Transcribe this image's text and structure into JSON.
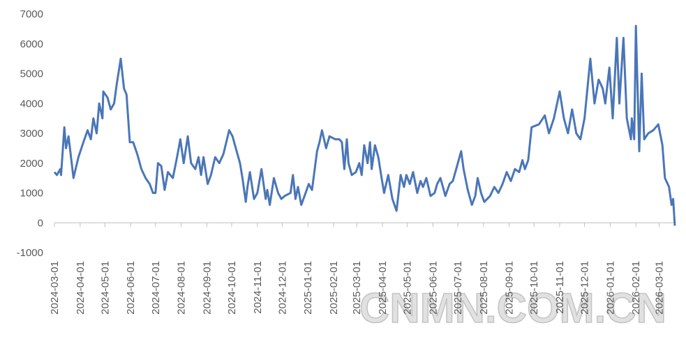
{
  "chart_data": {
    "type": "line",
    "color": "#4a76b8",
    "watermark": "CNMN.COM.CN",
    "ylim": [
      -1000,
      7000
    ],
    "yticks": [
      -1000,
      0,
      1000,
      2000,
      3000,
      4000,
      5000,
      6000,
      7000
    ],
    "xlim": [
      "2024-03-01",
      "2026-03-20"
    ],
    "xticks": [
      "2024-03-01",
      "2024-04-01",
      "2024-05-01",
      "2024-06-01",
      "2024-07-01",
      "2024-08-01",
      "2024-09-01",
      "2024-10-01",
      "2024-11-01",
      "2024-12-01",
      "2025-01-01",
      "2025-02-01",
      "2025-03-01",
      "2025-04-01",
      "2025-05-01",
      "2025-06-01",
      "2025-07-01",
      "2025-08-01",
      "2025-09-01",
      "2025-10-01",
      "2025-11-01",
      "2025-12-01",
      "2026-01-01",
      "2026-02-01",
      "2026-03-01"
    ],
    "x": [
      "2024-03-01",
      "2024-03-04",
      "2024-03-08",
      "2024-03-09",
      "2024-03-13",
      "2024-03-15",
      "2024-03-18",
      "2024-03-24",
      "2024-03-30",
      "2024-04-05",
      "2024-04-10",
      "2024-04-14",
      "2024-04-17",
      "2024-04-21",
      "2024-04-24",
      "2024-04-28",
      "2024-04-29",
      "2024-05-04",
      "2024-05-08",
      "2024-05-12",
      "2024-05-15",
      "2024-05-20",
      "2024-05-24",
      "2024-05-27",
      "2024-05-31",
      "2024-06-04",
      "2024-06-09",
      "2024-06-14",
      "2024-06-19",
      "2024-06-24",
      "2024-06-28",
      "2024-07-01",
      "2024-07-04",
      "2024-07-08",
      "2024-07-12",
      "2024-07-16",
      "2024-07-22",
      "2024-07-27",
      "2024-07-31",
      "2024-08-04",
      "2024-08-09",
      "2024-08-13",
      "2024-08-18",
      "2024-08-22",
      "2024-08-25",
      "2024-08-28",
      "2024-09-02",
      "2024-09-06",
      "2024-09-11",
      "2024-09-16",
      "2024-09-21",
      "2024-09-28",
      "2024-10-02",
      "2024-10-06",
      "2024-10-11",
      "2024-10-14",
      "2024-10-18",
      "2024-10-20",
      "2024-10-23",
      "2024-10-28",
      "2024-11-01",
      "2024-11-06",
      "2024-11-11",
      "2024-11-13",
      "2024-11-16",
      "2024-11-21",
      "2024-11-26",
      "2024-11-30",
      "2024-12-04",
      "2024-12-11",
      "2024-12-14",
      "2024-12-17",
      "2024-12-20",
      "2024-12-24",
      "2024-12-28",
      "2025-01-02",
      "2025-01-06",
      "2025-01-12",
      "2025-01-15",
      "2025-01-18",
      "2025-01-23",
      "2025-01-27",
      "2025-02-03",
      "2025-02-08",
      "2025-02-11",
      "2025-02-14",
      "2025-02-17",
      "2025-02-19",
      "2025-02-23",
      "2025-02-28",
      "2025-03-04",
      "2025-03-07",
      "2025-03-10",
      "2025-03-14",
      "2025-03-17",
      "2025-03-19",
      "2025-03-23",
      "2025-03-27",
      "2025-03-31",
      "2025-04-03",
      "2025-04-08",
      "2025-04-13",
      "2025-04-18",
      "2025-04-23",
      "2025-04-27",
      "2025-04-30",
      "2025-05-04",
      "2025-05-08",
      "2025-05-13",
      "2025-05-17",
      "2025-05-20",
      "2025-05-24",
      "2025-05-29",
      "2025-06-03",
      "2025-06-06",
      "2025-06-10",
      "2025-06-16",
      "2025-06-21",
      "2025-06-25",
      "2025-06-28",
      "2025-07-05",
      "2025-07-08",
      "2025-07-13",
      "2025-07-18",
      "2025-07-22",
      "2025-07-25",
      "2025-07-29",
      "2025-08-02",
      "2025-08-09",
      "2025-08-14",
      "2025-08-19",
      "2025-08-24",
      "2025-08-29",
      "2025-09-03",
      "2025-09-08",
      "2025-09-13",
      "2025-09-17",
      "2025-09-20",
      "2025-09-24",
      "2025-09-28",
      "2025-10-07",
      "2025-10-14",
      "2025-10-19",
      "2025-10-25",
      "2025-11-01",
      "2025-11-06",
      "2025-11-11",
      "2025-11-16",
      "2025-11-21",
      "2025-11-26",
      "2025-12-01",
      "2025-12-08",
      "2025-12-13",
      "2025-12-18",
      "2025-12-23",
      "2025-12-26",
      "2025-12-31",
      "2026-01-04",
      "2026-01-09",
      "2026-01-12",
      "2026-01-17",
      "2026-01-21",
      "2026-01-26",
      "2026-01-27",
      "2026-01-30",
      "2026-02-01",
      "2026-02-05",
      "2026-02-08",
      "2026-02-11",
      "2026-02-16",
      "2026-02-22",
      "2026-02-28",
      "2026-03-05",
      "2026-03-08",
      "2026-03-13",
      "2026-03-16",
      "2026-03-18",
      "2026-03-20"
    ],
    "values": [
      1700,
      1600,
      1800,
      1600,
      3200,
      2500,
      2900,
      1500,
      2200,
      2700,
      3100,
      2800,
      3500,
      3000,
      4000,
      3500,
      4400,
      4200,
      3800,
      4000,
      4600,
      5500,
      4500,
      4300,
      2700,
      2700,
      2300,
      1800,
      1500,
      1300,
      1000,
      1000,
      2000,
      1900,
      1100,
      1700,
      1500,
      2200,
      2800,
      2000,
      2900,
      2000,
      1800,
      2200,
      1600,
      2200,
      1300,
      1600,
      2200,
      2000,
      2300,
      3100,
      2900,
      2500,
      2000,
      1500,
      700,
      1200,
      1700,
      800,
      1000,
      1800,
      800,
      1100,
      600,
      1500,
      1000,
      800,
      900,
      1000,
      1600,
      800,
      1200,
      600,
      900,
      1300,
      1100,
      2400,
      2700,
      3100,
      2500,
      2900,
      2800,
      2800,
      2700,
      1800,
      2800,
      2000,
      1600,
      1700,
      2000,
      1600,
      2600,
      2000,
      2700,
      1800,
      2600,
      2200,
      1500,
      1000,
      1600,
      800,
      400,
      1600,
      1200,
      1600,
      1300,
      1700,
      1000,
      1400,
      1200,
      1500,
      900,
      1000,
      1300,
      1500,
      900,
      1300,
      1400,
      1700,
      2400,
      1800,
      1100,
      600,
      900,
      1500,
      1000,
      700,
      900,
      1200,
      1000,
      1300,
      1700,
      1400,
      1800,
      1700,
      2100,
      1800,
      2100,
      3200,
      3300,
      3600,
      3000,
      3500,
      4400,
      3500,
      3000,
      3800,
      3000,
      2800,
      3500,
      5500,
      4000,
      4800,
      4500,
      4000,
      5200,
      3500,
      6200,
      4000,
      6200,
      3500,
      2800,
      3500,
      2800,
      6600,
      2400,
      5000,
      2800,
      3000,
      3100,
      3300,
      2600,
      1500,
      1200,
      600,
      800,
      -100
    ]
  }
}
